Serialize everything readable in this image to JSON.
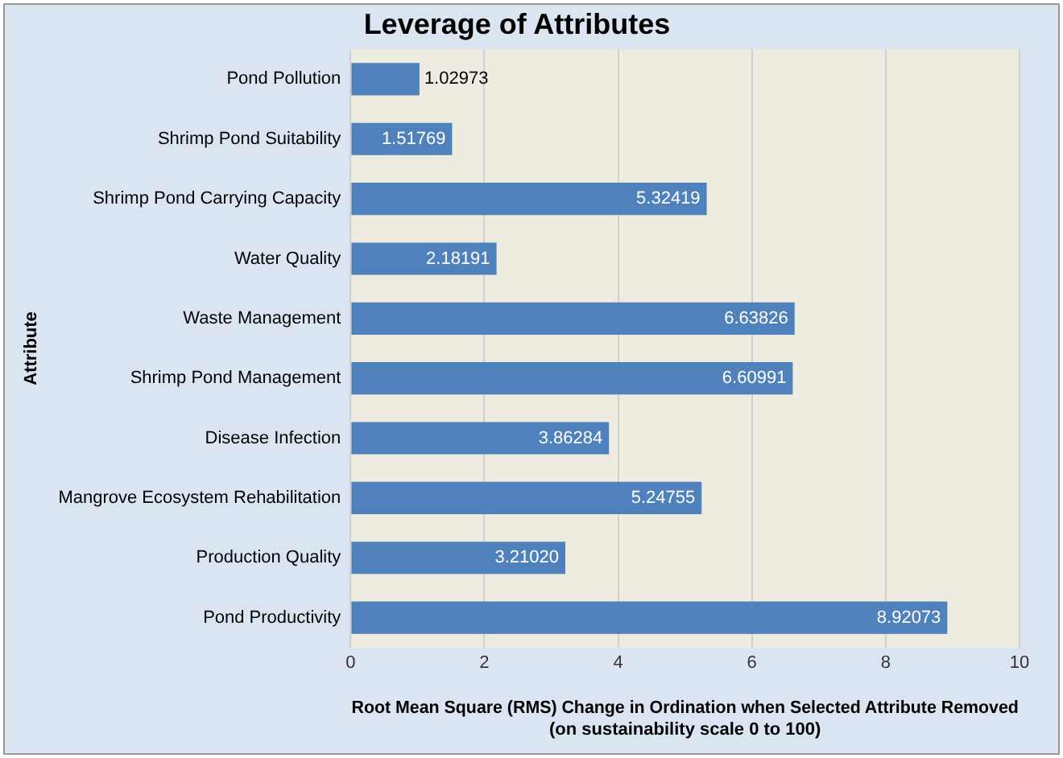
{
  "chart_data": {
    "type": "bar",
    "orientation": "horizontal",
    "title": "Leverage of Attributes",
    "xlabel": "Root Mean Square (RMS) Change in Ordination when Selected Attribute Removed (on sustainability scale 0 to 100)",
    "ylabel": "Attribute",
    "categories": [
      "Pond Pollution",
      "Shrimp Pond Suitability",
      "Shrimp Pond Carrying Capacity",
      "Water Quality",
      "Waste Management",
      "Shrimp Pond Management",
      "Disease Infection",
      "Mangrove Ecosystem Rehabilitation",
      "Production Quality",
      "Pond Productivity"
    ],
    "values": [
      1.02973,
      1.51769,
      5.32419,
      2.18191,
      6.63826,
      6.60991,
      3.86284,
      5.24755,
      3.2102,
      8.92073
    ],
    "value_labels": [
      "1.02973",
      "1.51769",
      "5.32419",
      "2.18191",
      "6.63826",
      "6.60991",
      "3.86284",
      "5.24755",
      "3.21020",
      "8.92073"
    ],
    "color": "#4f81bd",
    "xlim": [
      0,
      10
    ],
    "xticks": [
      0,
      2,
      4,
      6,
      8,
      10
    ],
    "grid": "x",
    "legend": false
  }
}
